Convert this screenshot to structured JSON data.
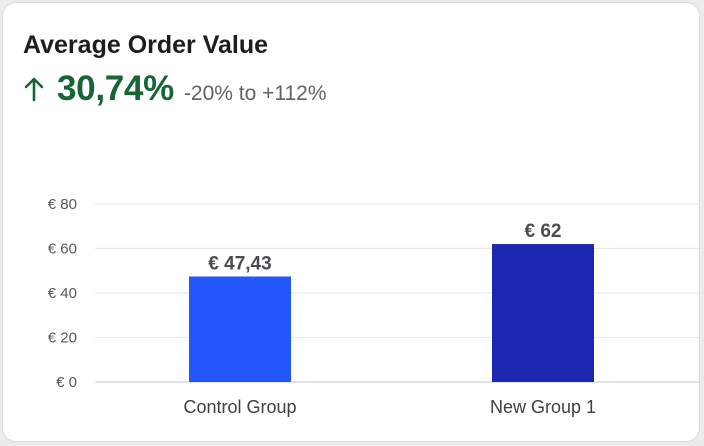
{
  "card": {
    "title": "Average Order Value",
    "change": "30,74%",
    "range": "-20% to +112%",
    "trend_icon": "arrow-up-icon",
    "trend_color": "#166534"
  },
  "chart_data": {
    "type": "bar",
    "title": "",
    "xlabel": "",
    "ylabel": "",
    "categories": [
      "Control Group",
      "New Group 1"
    ],
    "values": [
      47.43,
      62
    ],
    "data_labels": [
      "€ 47,43",
      "€ 62"
    ],
    "colors": [
      "#2457fb",
      "#1a27ae"
    ],
    "ylim": [
      0,
      80
    ],
    "yticks": [
      0,
      20,
      40,
      60,
      80
    ],
    "ytick_labels": [
      "€ 0",
      "€ 20",
      "€ 40",
      "€ 60",
      "€ 80"
    ],
    "grid": true,
    "legend": "none"
  }
}
